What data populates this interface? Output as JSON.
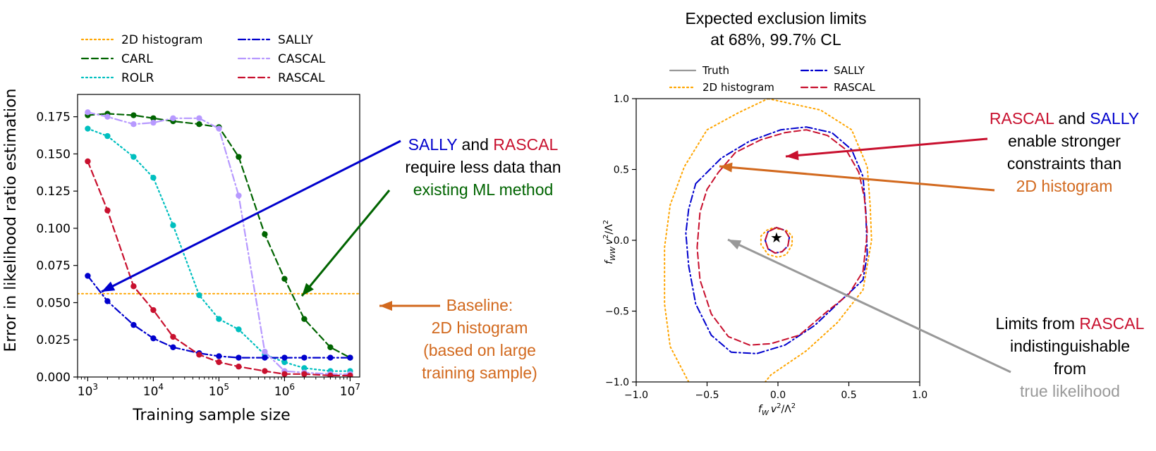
{
  "colors": {
    "truth": "#999999",
    "histogram": "#ffa500",
    "carl": "#006400",
    "rolr": "#00bfbf",
    "sally": "#0000cd",
    "cascal": "#b799ff",
    "rascal": "#c8102e",
    "annotation_orange": "#d2691e",
    "annotation_gray": "#999999"
  },
  "chart_data": [
    {
      "type": "line",
      "xlabel": "Training sample size",
      "ylabel": "Error in likelihood ratio estimation",
      "xscale": "log",
      "xlim": [
        700,
        14000000
      ],
      "ylim": [
        0,
        0.19
      ],
      "xticks": [
        1000,
        10000,
        100000,
        1000000,
        10000000
      ],
      "xtick_labels": [
        {
          "base": "10",
          "exp": "3"
        },
        {
          "base": "10",
          "exp": "4"
        },
        {
          "base": "10",
          "exp": "5"
        },
        {
          "base": "10",
          "exp": "6"
        },
        {
          "base": "10",
          "exp": "7"
        }
      ],
      "yticks": [
        0,
        0.025,
        0.05,
        0.075,
        0.1,
        0.125,
        0.15,
        0.175
      ],
      "ytick_labels": [
        "0.000",
        "0.025",
        "0.050",
        "0.075",
        "0.100",
        "0.125",
        "0.150",
        "0.175"
      ],
      "legend_position": "top",
      "legend_columns": [
        [
          "2D histogram",
          "CARL",
          "ROLR"
        ],
        [
          "SALLY",
          "CASCAL",
          "RASCAL"
        ]
      ],
      "x": [
        1000,
        2000,
        5000,
        10000,
        20000,
        50000,
        100000,
        200000,
        500000,
        1000000,
        2000000,
        5000000,
        10000000
      ],
      "series": [
        {
          "name": "2D histogram",
          "style": "dotted",
          "color_key": "histogram",
          "baseline": 0.056
        },
        {
          "name": "CARL",
          "style": "dashed",
          "color_key": "carl",
          "values": [
            0.176,
            0.177,
            0.176,
            0.174,
            0.172,
            0.17,
            0.168,
            0.148,
            0.096,
            0.066,
            0.039,
            0.02,
            0.013
          ]
        },
        {
          "name": "ROLR",
          "style": "dotted",
          "color_key": "rolr",
          "values": [
            0.167,
            0.162,
            0.148,
            0.134,
            0.102,
            0.055,
            0.039,
            0.032,
            0.015,
            0.01,
            0.006,
            0.004,
            0.004
          ]
        },
        {
          "name": "SALLY",
          "style": "dashdot",
          "color_key": "sally",
          "values": [
            0.068,
            0.051,
            0.035,
            0.026,
            0.02,
            0.016,
            0.014,
            0.013,
            0.013,
            0.013,
            0.013,
            0.013,
            0.013
          ]
        },
        {
          "name": "CASCAL",
          "style": "dashdot",
          "color_key": "cascal",
          "values": [
            0.178,
            0.175,
            0.17,
            0.171,
            0.174,
            0.174,
            0.167,
            0.122,
            0.017,
            0.004,
            0.003,
            0.002,
            0.002
          ]
        },
        {
          "name": "RASCAL",
          "style": "dashed",
          "color_key": "rascal",
          "values": [
            0.145,
            0.112,
            0.061,
            0.045,
            0.027,
            0.015,
            0.01,
            0.007,
            0.004,
            0.002,
            0.002,
            0.001,
            0.001
          ]
        }
      ]
    },
    {
      "type": "line",
      "title_lines": [
        "Expected exclusion limits",
        "at 68%, 99.7% CL"
      ],
      "xlabel": {
        "f": "f",
        "sub": "W",
        "v": "v",
        "sup": "2",
        "rest": "/Λ",
        "sup2": "2"
      },
      "ylabel": {
        "f": "f",
        "sub": "WW",
        "v": "v",
        "sup": "2",
        "rest": "/Λ",
        "sup2": "2"
      },
      "xlim": [
        -1.0,
        1.0
      ],
      "ylim": [
        -1.0,
        1.0
      ],
      "xticks": [
        -1.0,
        -0.5,
        0.0,
        0.5,
        1.0
      ],
      "xtick_labels": [
        "−1.0",
        "−0.5",
        "0.0",
        "0.5",
        "1.0"
      ],
      "yticks": [
        -1.0,
        -0.5,
        0.0,
        0.5,
        1.0
      ],
      "ytick_labels": [
        "−1.0",
        "−0.5",
        "0.0",
        "0.5",
        "1.0"
      ],
      "legend_position": "top",
      "legend_columns": [
        [
          "Truth",
          "2D histogram"
        ],
        [
          "SALLY",
          "RASCAL"
        ]
      ],
      "best_fit": {
        "x": -0.01,
        "y": 0.02,
        "symbol": "★"
      },
      "series": [
        {
          "name": "2D histogram",
          "style": "dotted",
          "color_key": "histogram",
          "contours": [
            [
              [
                -0.07,
                1.0
              ],
              [
                0.3,
                0.92
              ],
              [
                0.52,
                0.78
              ],
              [
                0.63,
                0.52
              ],
              [
                0.65,
                0.25
              ],
              [
                0.66,
                0.0
              ],
              [
                0.6,
                -0.35
              ],
              [
                0.42,
                -0.58
              ],
              [
                0.2,
                -0.78
              ],
              [
                -0.05,
                -0.95
              ],
              [
                -0.09,
                -1.0
              ]
            ],
            [
              [
                -0.63,
                -1.0
              ],
              [
                -0.76,
                -0.75
              ],
              [
                -0.8,
                -0.45
              ],
              [
                -0.8,
                -0.05
              ],
              [
                -0.76,
                0.25
              ],
              [
                -0.66,
                0.52
              ],
              [
                -0.5,
                0.78
              ],
              [
                -0.28,
                0.9
              ],
              [
                -0.07,
                1.0
              ]
            ],
            [
              [
                0.0,
                0.08
              ],
              [
                0.06,
                0.07
              ],
              [
                0.1,
                0.03
              ],
              [
                0.1,
                -0.03
              ],
              [
                0.06,
                -0.1
              ],
              [
                0.0,
                -0.12
              ],
              [
                -0.07,
                -0.1
              ],
              [
                -0.12,
                -0.03
              ],
              [
                -0.12,
                0.03
              ],
              [
                -0.08,
                0.07
              ],
              [
                -0.03,
                0.09
              ],
              [
                0.0,
                0.08
              ]
            ]
          ]
        },
        {
          "name": "SALLY",
          "style": "dashdot",
          "color_key": "sally",
          "contours": [
            [
              [
                -0.58,
                0.4
              ],
              [
                -0.4,
                0.58
              ],
              [
                -0.2,
                0.7
              ],
              [
                0.02,
                0.78
              ],
              [
                0.2,
                0.8
              ],
              [
                0.38,
                0.76
              ],
              [
                0.52,
                0.64
              ],
              [
                0.6,
                0.45
              ],
              [
                0.62,
                0.2
              ],
              [
                0.63,
                -0.1
              ],
              [
                0.6,
                -0.28
              ],
              [
                0.45,
                -0.42
              ],
              [
                0.26,
                -0.6
              ],
              [
                0.05,
                -0.74
              ],
              [
                -0.15,
                -0.8
              ],
              [
                -0.33,
                -0.79
              ],
              [
                -0.47,
                -0.67
              ],
              [
                -0.58,
                -0.45
              ],
              [
                -0.63,
                -0.18
              ],
              [
                -0.65,
                0.05
              ],
              [
                -0.63,
                0.22
              ],
              [
                -0.58,
                0.4
              ]
            ],
            [
              [
                -0.01,
                0.09
              ],
              [
                0.05,
                0.07
              ],
              [
                0.08,
                0.02
              ],
              [
                0.07,
                -0.04
              ],
              [
                0.03,
                -0.08
              ],
              [
                -0.02,
                -0.09
              ],
              [
                -0.07,
                -0.06
              ],
              [
                -0.09,
                0.0
              ],
              [
                -0.07,
                0.06
              ],
              [
                -0.01,
                0.09
              ]
            ]
          ]
        },
        {
          "name": "RASCAL",
          "style": "dashed",
          "color_key": "rascal",
          "contours": [
            [
              [
                -0.42,
                0.48
              ],
              [
                -0.3,
                0.62
              ],
              [
                -0.12,
                0.71
              ],
              [
                0.05,
                0.76
              ],
              [
                0.2,
                0.78
              ],
              [
                0.35,
                0.74
              ],
              [
                0.48,
                0.64
              ],
              [
                0.57,
                0.48
              ],
              [
                0.61,
                0.3
              ],
              [
                0.63,
                0.05
              ],
              [
                0.6,
                -0.22
              ],
              [
                0.5,
                -0.38
              ],
              [
                0.35,
                -0.5
              ],
              [
                0.15,
                -0.67
              ],
              [
                -0.05,
                -0.73
              ],
              [
                -0.2,
                -0.74
              ],
              [
                -0.35,
                -0.68
              ],
              [
                -0.47,
                -0.52
              ],
              [
                -0.55,
                -0.28
              ],
              [
                -0.57,
                -0.05
              ],
              [
                -0.55,
                0.2
              ],
              [
                -0.5,
                0.36
              ],
              [
                -0.42,
                0.48
              ]
            ],
            [
              [
                -0.01,
                0.09
              ],
              [
                0.05,
                0.07
              ],
              [
                0.08,
                0.02
              ],
              [
                0.07,
                -0.04
              ],
              [
                0.03,
                -0.08
              ],
              [
                -0.02,
                -0.09
              ],
              [
                -0.07,
                -0.06
              ],
              [
                -0.09,
                0.0
              ],
              [
                -0.07,
                0.06
              ],
              [
                -0.01,
                0.09
              ]
            ]
          ]
        }
      ]
    }
  ],
  "annotations": {
    "left_main": [
      [
        {
          "t": "SALLY",
          "c": "sally"
        },
        {
          "t": " and ",
          "c": "text"
        },
        {
          "t": "RASCAL",
          "c": "rascal"
        }
      ],
      [
        {
          "t": "require less data than",
          "c": "text"
        }
      ],
      [
        {
          "t": "existing ML method",
          "c": "carl"
        }
      ]
    ],
    "left_baseline": [
      [
        {
          "t": "Baseline:",
          "c": "annotation_orange"
        }
      ],
      [
        {
          "t": "2D histogram",
          "c": "annotation_orange"
        }
      ],
      [
        {
          "t": "(based on large",
          "c": "annotation_orange"
        }
      ],
      [
        {
          "t": "training sample)",
          "c": "annotation_orange"
        }
      ]
    ],
    "right_top": [
      [
        {
          "t": "RASCAL",
          "c": "rascal"
        },
        {
          "t": " and ",
          "c": "text"
        },
        {
          "t": "SALLY",
          "c": "sally"
        }
      ],
      [
        {
          "t": "enable stronger",
          "c": "text"
        }
      ],
      [
        {
          "t": "constraints than",
          "c": "text"
        }
      ],
      [
        {
          "t": "2D histogram",
          "c": "annotation_orange"
        }
      ]
    ],
    "right_bottom": [
      [
        {
          "t": "Limits from ",
          "c": "text"
        },
        {
          "t": "RASCAL",
          "c": "rascal"
        }
      ],
      [
        {
          "t": "indistinguishable",
          "c": "text"
        }
      ],
      [
        {
          "t": "from",
          "c": "text"
        }
      ],
      [
        {
          "t": "true likelihood",
          "c": "annotation_gray"
        }
      ]
    ]
  }
}
